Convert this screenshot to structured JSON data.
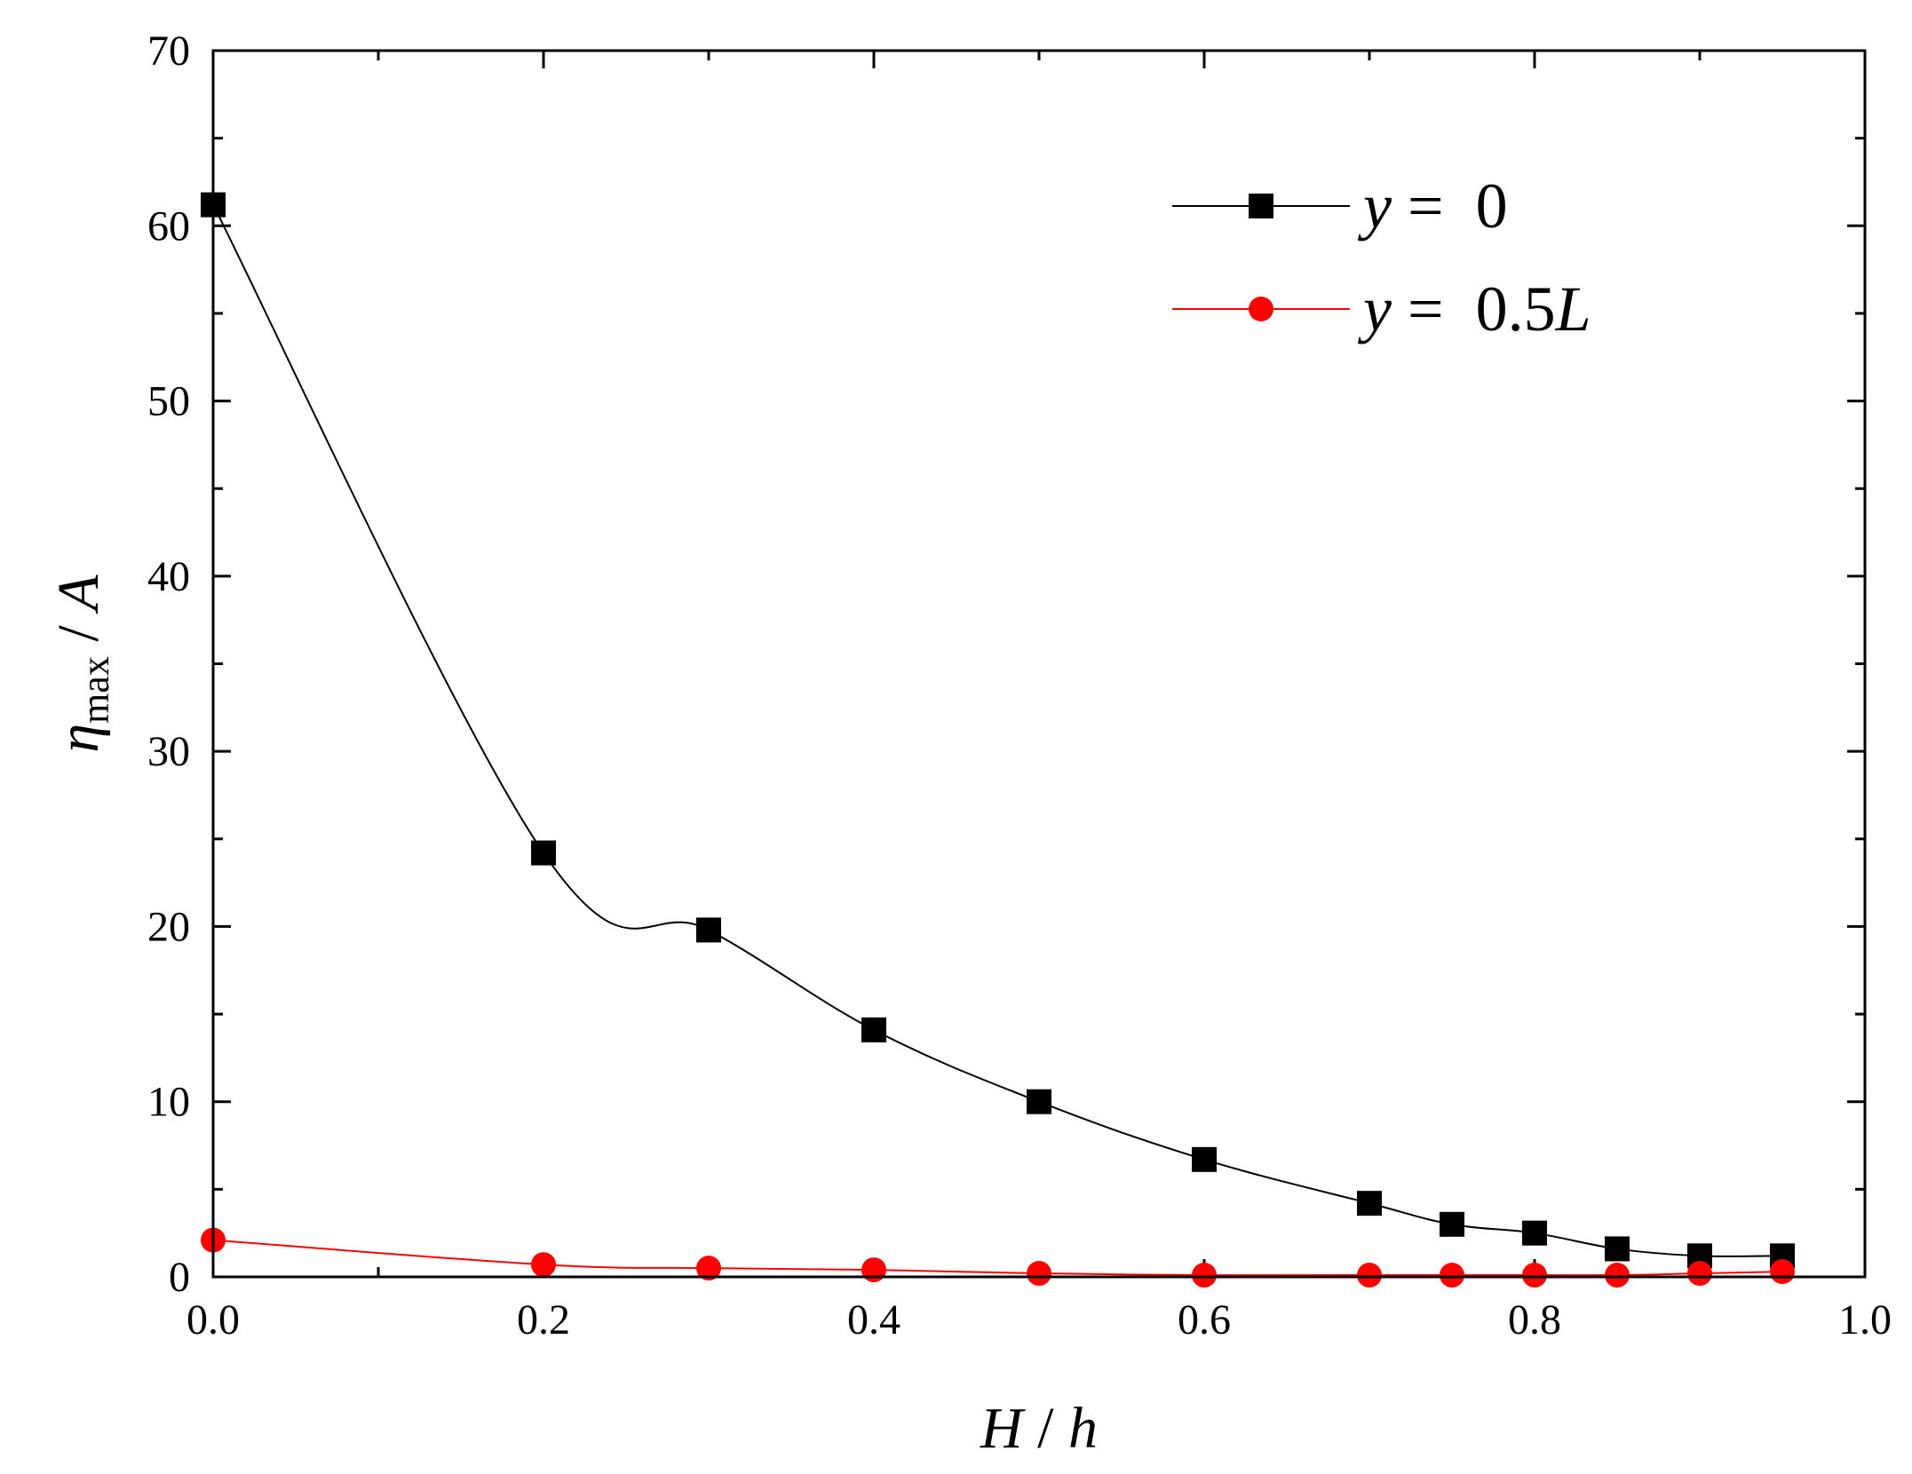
{
  "chart_data": {
    "type": "line",
    "xlabel": {
      "var1": "H",
      "sep": " / ",
      "var2": "h"
    },
    "ylabel": {
      "var": "η",
      "sub": "max",
      "sep": " / ",
      "var2": "A"
    },
    "xlim": [
      0,
      1.0
    ],
    "ylim": [
      0,
      70
    ],
    "x_ticks": [
      "0.0",
      "0.2",
      "0.4",
      "0.6",
      "0.8",
      "1.0"
    ],
    "y_ticks": [
      "0",
      "10",
      "20",
      "30",
      "40",
      "50",
      "60",
      "70"
    ],
    "x_tick_values": [
      0,
      0.2,
      0.4,
      0.6,
      0.8,
      1.0
    ],
    "y_tick_values": [
      0,
      10,
      20,
      30,
      40,
      50,
      60,
      70
    ],
    "grid": false,
    "legend_position": "top-right",
    "series": [
      {
        "name_var": "y",
        "name_eq": " =  ",
        "name_val": "0",
        "name_suffix": "",
        "marker": "square",
        "color": "#000000",
        "x": [
          0.0,
          0.2,
          0.3,
          0.4,
          0.5,
          0.6,
          0.7,
          0.75,
          0.8,
          0.85,
          0.9,
          0.95
        ],
        "y": [
          61.2,
          24.2,
          19.8,
          14.1,
          10.0,
          6.7,
          4.2,
          3.0,
          2.5,
          1.6,
          1.2,
          1.2
        ]
      },
      {
        "name_var": "y",
        "name_eq": " =  ",
        "name_val": "0.5",
        "name_suffix": "L",
        "marker": "circle",
        "color": "#ff0000",
        "x": [
          0.0,
          0.2,
          0.3,
          0.4,
          0.5,
          0.6,
          0.7,
          0.75,
          0.8,
          0.85,
          0.9,
          0.95
        ],
        "y": [
          2.1,
          0.7,
          0.5,
          0.4,
          0.2,
          0.1,
          0.1,
          0.1,
          0.1,
          0.1,
          0.2,
          0.3
        ]
      }
    ]
  }
}
